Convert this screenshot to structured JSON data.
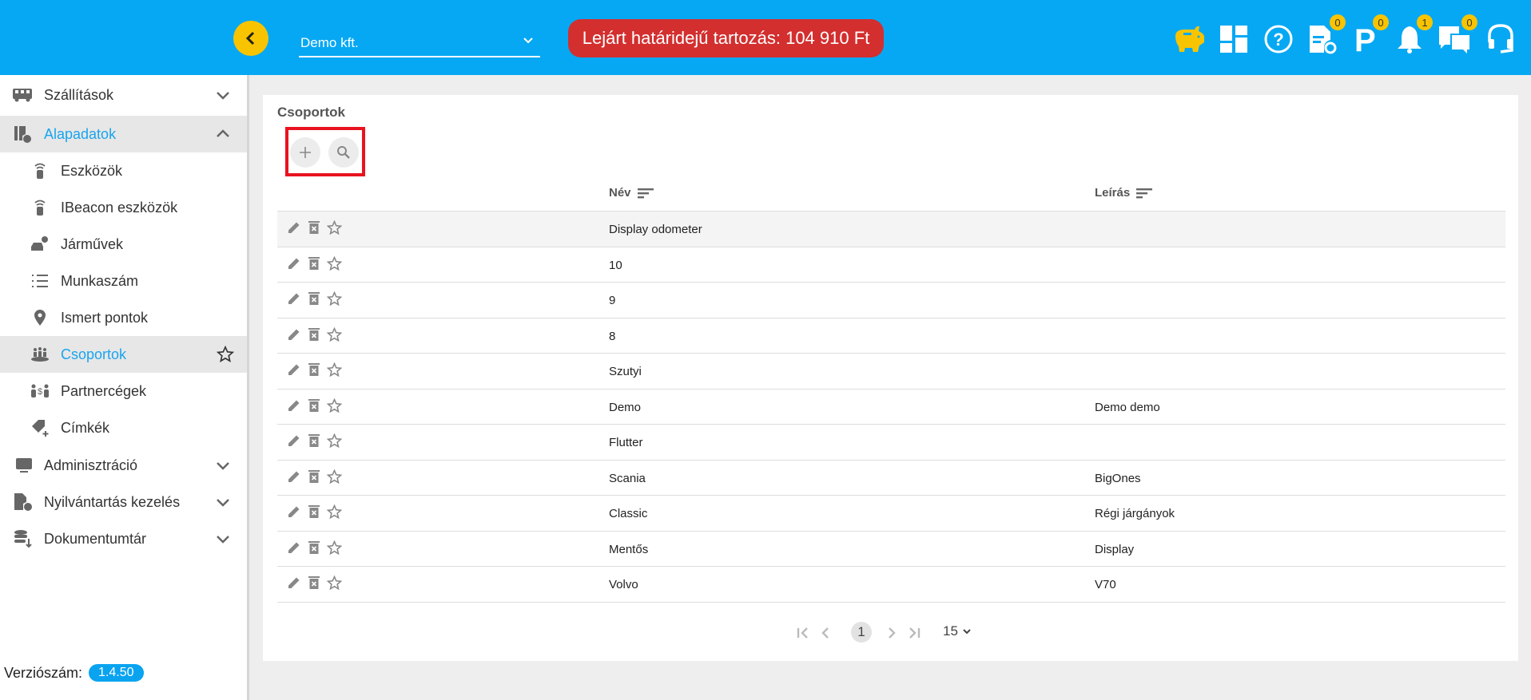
{
  "header": {
    "company": "Demo kft.",
    "debt_alert": "Lejárt határidejű tartozás: 104 910 Ft",
    "icons": [
      {
        "name": "piggy-bank-icon",
        "badge": null
      },
      {
        "name": "dashboard-icon",
        "badge": null
      },
      {
        "name": "help-icon",
        "badge": null
      },
      {
        "name": "document-refresh-icon",
        "badge": "0"
      },
      {
        "name": "parking-icon",
        "badge": "0"
      },
      {
        "name": "bell-icon",
        "badge": "1"
      },
      {
        "name": "chat-icon",
        "badge": "0"
      },
      {
        "name": "headset-icon",
        "badge": null
      }
    ],
    "colors": {
      "bar": "#06a8f3",
      "alert": "#d32f2f",
      "accent": "#f8c400"
    }
  },
  "sidebar": {
    "items": [
      {
        "label": "Szállítások",
        "icon": "bus-icon"
      },
      {
        "label": "Alapadatok",
        "icon": "settings-data-icon"
      },
      {
        "label": "Eszközök",
        "icon": "beacon-icon"
      },
      {
        "label": "IBeacon eszközök",
        "icon": "beacon-icon"
      },
      {
        "label": "Járművek",
        "icon": "vehicle-settings-icon"
      },
      {
        "label": "Munkaszám",
        "icon": "numbered-list-icon"
      },
      {
        "label": "Ismert pontok",
        "icon": "location-pin-icon"
      },
      {
        "label": "Csoportok",
        "icon": "group-icon"
      },
      {
        "label": "Partnercégek",
        "icon": "partners-icon"
      },
      {
        "label": "Címkék",
        "icon": "tag-add-icon"
      },
      {
        "label": "Adminisztráció",
        "icon": "monitor-icon"
      },
      {
        "label": "Nyilvántartás kezelés",
        "icon": "document-settings-icon"
      },
      {
        "label": "Dokumentumtár",
        "icon": "database-download-icon"
      }
    ],
    "version_label": "Verziószám:",
    "version": "1.4.50"
  },
  "main": {
    "title": "Csoportok",
    "columns": [
      "Név",
      "Leírás"
    ],
    "rows": [
      [
        "Display odometer",
        ""
      ],
      [
        "10",
        ""
      ],
      [
        "9",
        ""
      ],
      [
        "8",
        ""
      ],
      [
        "Szutyi",
        ""
      ],
      [
        "Demo",
        "Demo demo"
      ],
      [
        "Flutter",
        ""
      ],
      [
        "Scania",
        "BigOnes"
      ],
      [
        "Classic",
        "Régi járgányok"
      ],
      [
        "Mentős",
        "Display"
      ],
      [
        "Volvo",
        "V70"
      ]
    ],
    "pagination": {
      "current_page": "1",
      "page_size": "15"
    }
  }
}
